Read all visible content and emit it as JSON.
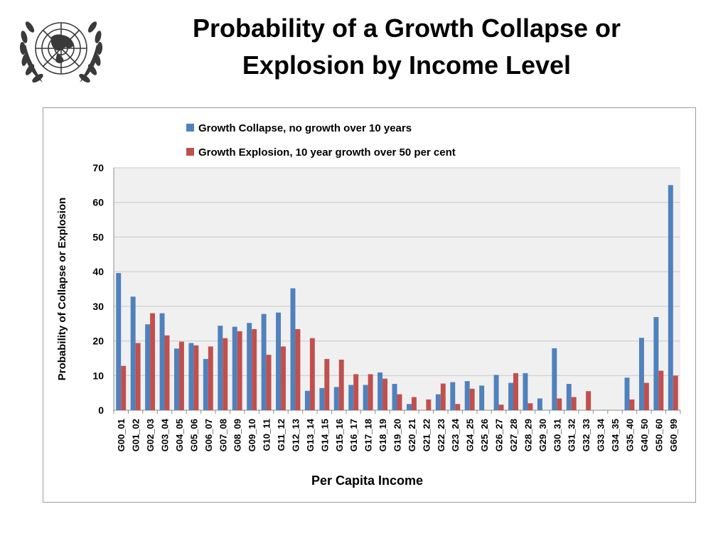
{
  "slide": {
    "title_line1": "Probability of a Growth Collapse or",
    "title_line2": "Explosion by Income Level"
  },
  "logo": {
    "name": "un-emblem",
    "color": "#3a3a3a"
  },
  "colors": {
    "collapse": "#4f81bd",
    "explosion": "#c0504d",
    "plot_bg": "#f0f0f0",
    "grid": "#c8c8c8"
  },
  "chart_data": {
    "type": "bar",
    "title": "",
    "xlabel": "Per Capita Income",
    "ylabel": "Probability of Collapse or Explosion",
    "ylim": [
      0,
      70
    ],
    "yticks": [
      0,
      10,
      20,
      30,
      40,
      50,
      60,
      70
    ],
    "grid": true,
    "legend_position": "top-left",
    "categories": [
      "G00_01",
      "G01_02",
      "G02_03",
      "G03_04",
      "G04_05",
      "G05_06",
      "G06_07",
      "G07_08",
      "G08_09",
      "G09_10",
      "G10_11",
      "G11_12",
      "G12_13",
      "G13_14",
      "G14_15",
      "G15_16",
      "G16_17",
      "G17_18",
      "G18_19",
      "G19_20",
      "G20_21",
      "G21_22",
      "G22_23",
      "G23_24",
      "G24_25",
      "G25_26",
      "G26_27",
      "G27_28",
      "G28_29",
      "G29_30",
      "G30_31",
      "G31_32",
      "G32_33",
      "G33_34",
      "G34_35",
      "G35_40",
      "G40_50",
      "G50_60",
      "G60_99"
    ],
    "series": [
      {
        "name": "Growth Collapse, no growth over 10 years",
        "color": "#4f81bd",
        "values": [
          39.6,
          32.8,
          24.8,
          28.0,
          17.8,
          19.4,
          14.8,
          24.4,
          24.1,
          25.2,
          27.8,
          28.2,
          35.2,
          5.6,
          6.4,
          6.7,
          7.3,
          7.3,
          10.9,
          7.6,
          1.8,
          0,
          4.6,
          8.1,
          8.4,
          7.1,
          10.2,
          7.9,
          10.7,
          3.4,
          17.9,
          7.6,
          0,
          0,
          0,
          9.4,
          20.9,
          26.9,
          65.0
        ]
      },
      {
        "name": "Growth Explosion, 10 year growth over 50 per cent",
        "color": "#c0504d",
        "values": [
          12.8,
          19.4,
          28.0,
          21.6,
          19.8,
          18.7,
          18.4,
          20.8,
          22.8,
          23.4,
          16.0,
          18.4,
          23.4,
          20.8,
          14.8,
          14.6,
          10.4,
          10.4,
          9.1,
          4.6,
          3.8,
          3.1,
          7.7,
          1.8,
          6.2,
          0,
          1.6,
          10.7,
          2.0,
          0,
          3.4,
          3.8,
          5.5,
          0,
          0,
          3.1,
          7.9,
          11.4,
          10.0
        ]
      }
    ]
  }
}
